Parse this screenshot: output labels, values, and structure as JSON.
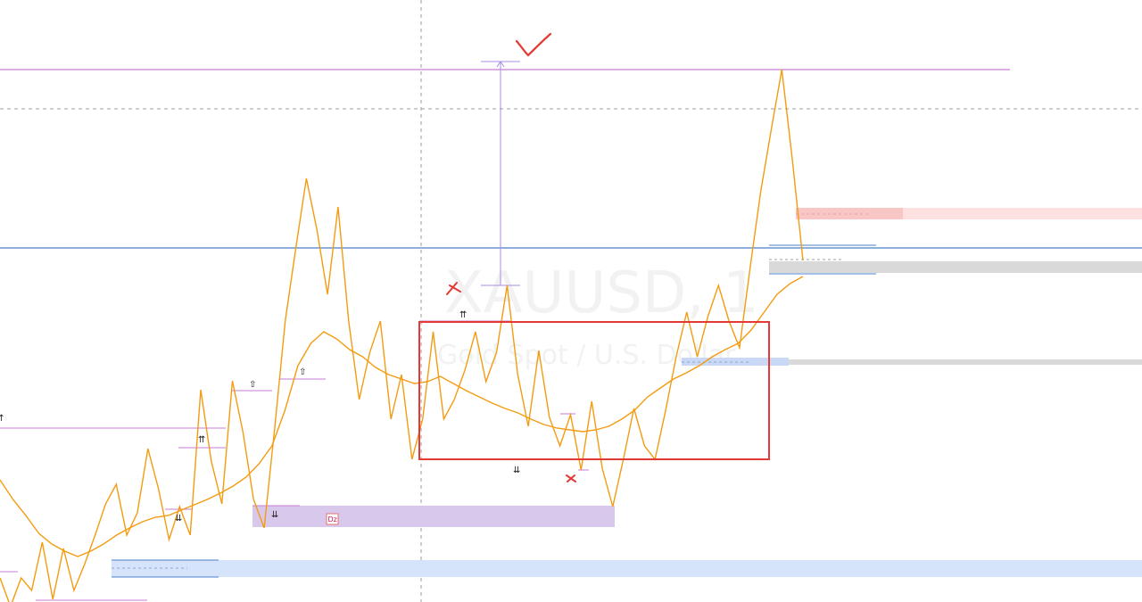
{
  "watermark": {
    "symbol": "XAUUSD, 1",
    "description": "Gold Spot / U.S. Dollar"
  },
  "markers": {
    "up_double": "⇈",
    "down_double": "⇊",
    "up_hollow": "⇧",
    "dz": "Dz"
  },
  "colors": {
    "price": "#f39c12",
    "ma": "#f39c12",
    "level_purple": "#c77dd7",
    "level_blue": "#4a7fcb",
    "box": "#e53935",
    "demand_zone": "#d8c8ec",
    "blue_zone": "#d6e4fb",
    "supply_zone": "#fde0e0",
    "gray_zone": "#d9d9d9",
    "annotation": "#e53935"
  },
  "chart_data": {
    "type": "line",
    "series": [
      {
        "values": [
          648,
          680,
          648,
          662,
          608,
          672,
          615,
          662,
          633,
          600,
          565,
          543,
          600,
          575,
          503,
          548,
          605,
          568,
          600,
          437,
          517,
          565,
          427,
          485,
          560,
          592,
          480,
          360,
          278,
          200,
          258,
          330,
          232,
          360,
          448,
          395,
          360,
          470,
          420,
          515,
          470,
          372,
          470,
          448,
          415,
          372,
          428,
          395,
          320,
          420,
          478,
          393,
          468,
          500,
          465,
          527,
          450,
          525,
          568,
          515,
          458,
          500,
          515,
          460,
          400,
          350,
          400,
          355,
          320,
          360,
          390,
          300,
          215,
          145,
          78,
          180,
          292
        ]
      },
      {
        "values": [
          538,
          560,
          578,
          598,
          610,
          618,
          624,
          618,
          610,
          600,
          592,
          585,
          580,
          578,
          572,
          566,
          560,
          553,
          545,
          535,
          520,
          500,
          460,
          410,
          385,
          372,
          380,
          392,
          400,
          412,
          420,
          425,
          430,
          428,
          422,
          430,
          438,
          445,
          452,
          458,
          463,
          470,
          476,
          480,
          482,
          484,
          482,
          478,
          470,
          460,
          445,
          435,
          425,
          418,
          410,
          400,
          392,
          385,
          370,
          350,
          330,
          318,
          310
        ]
      }
    ],
    "levels": [
      {
        "kind": "resistance",
        "color": "purple"
      },
      {
        "kind": "reference",
        "color": "blue"
      }
    ],
    "zones": [
      {
        "kind": "demand",
        "label": "Dz"
      },
      {
        "kind": "blue"
      },
      {
        "kind": "supply"
      },
      {
        "kind": "gray-upper"
      },
      {
        "kind": "gray-lower"
      }
    ],
    "grid": false,
    "legend": "none"
  }
}
